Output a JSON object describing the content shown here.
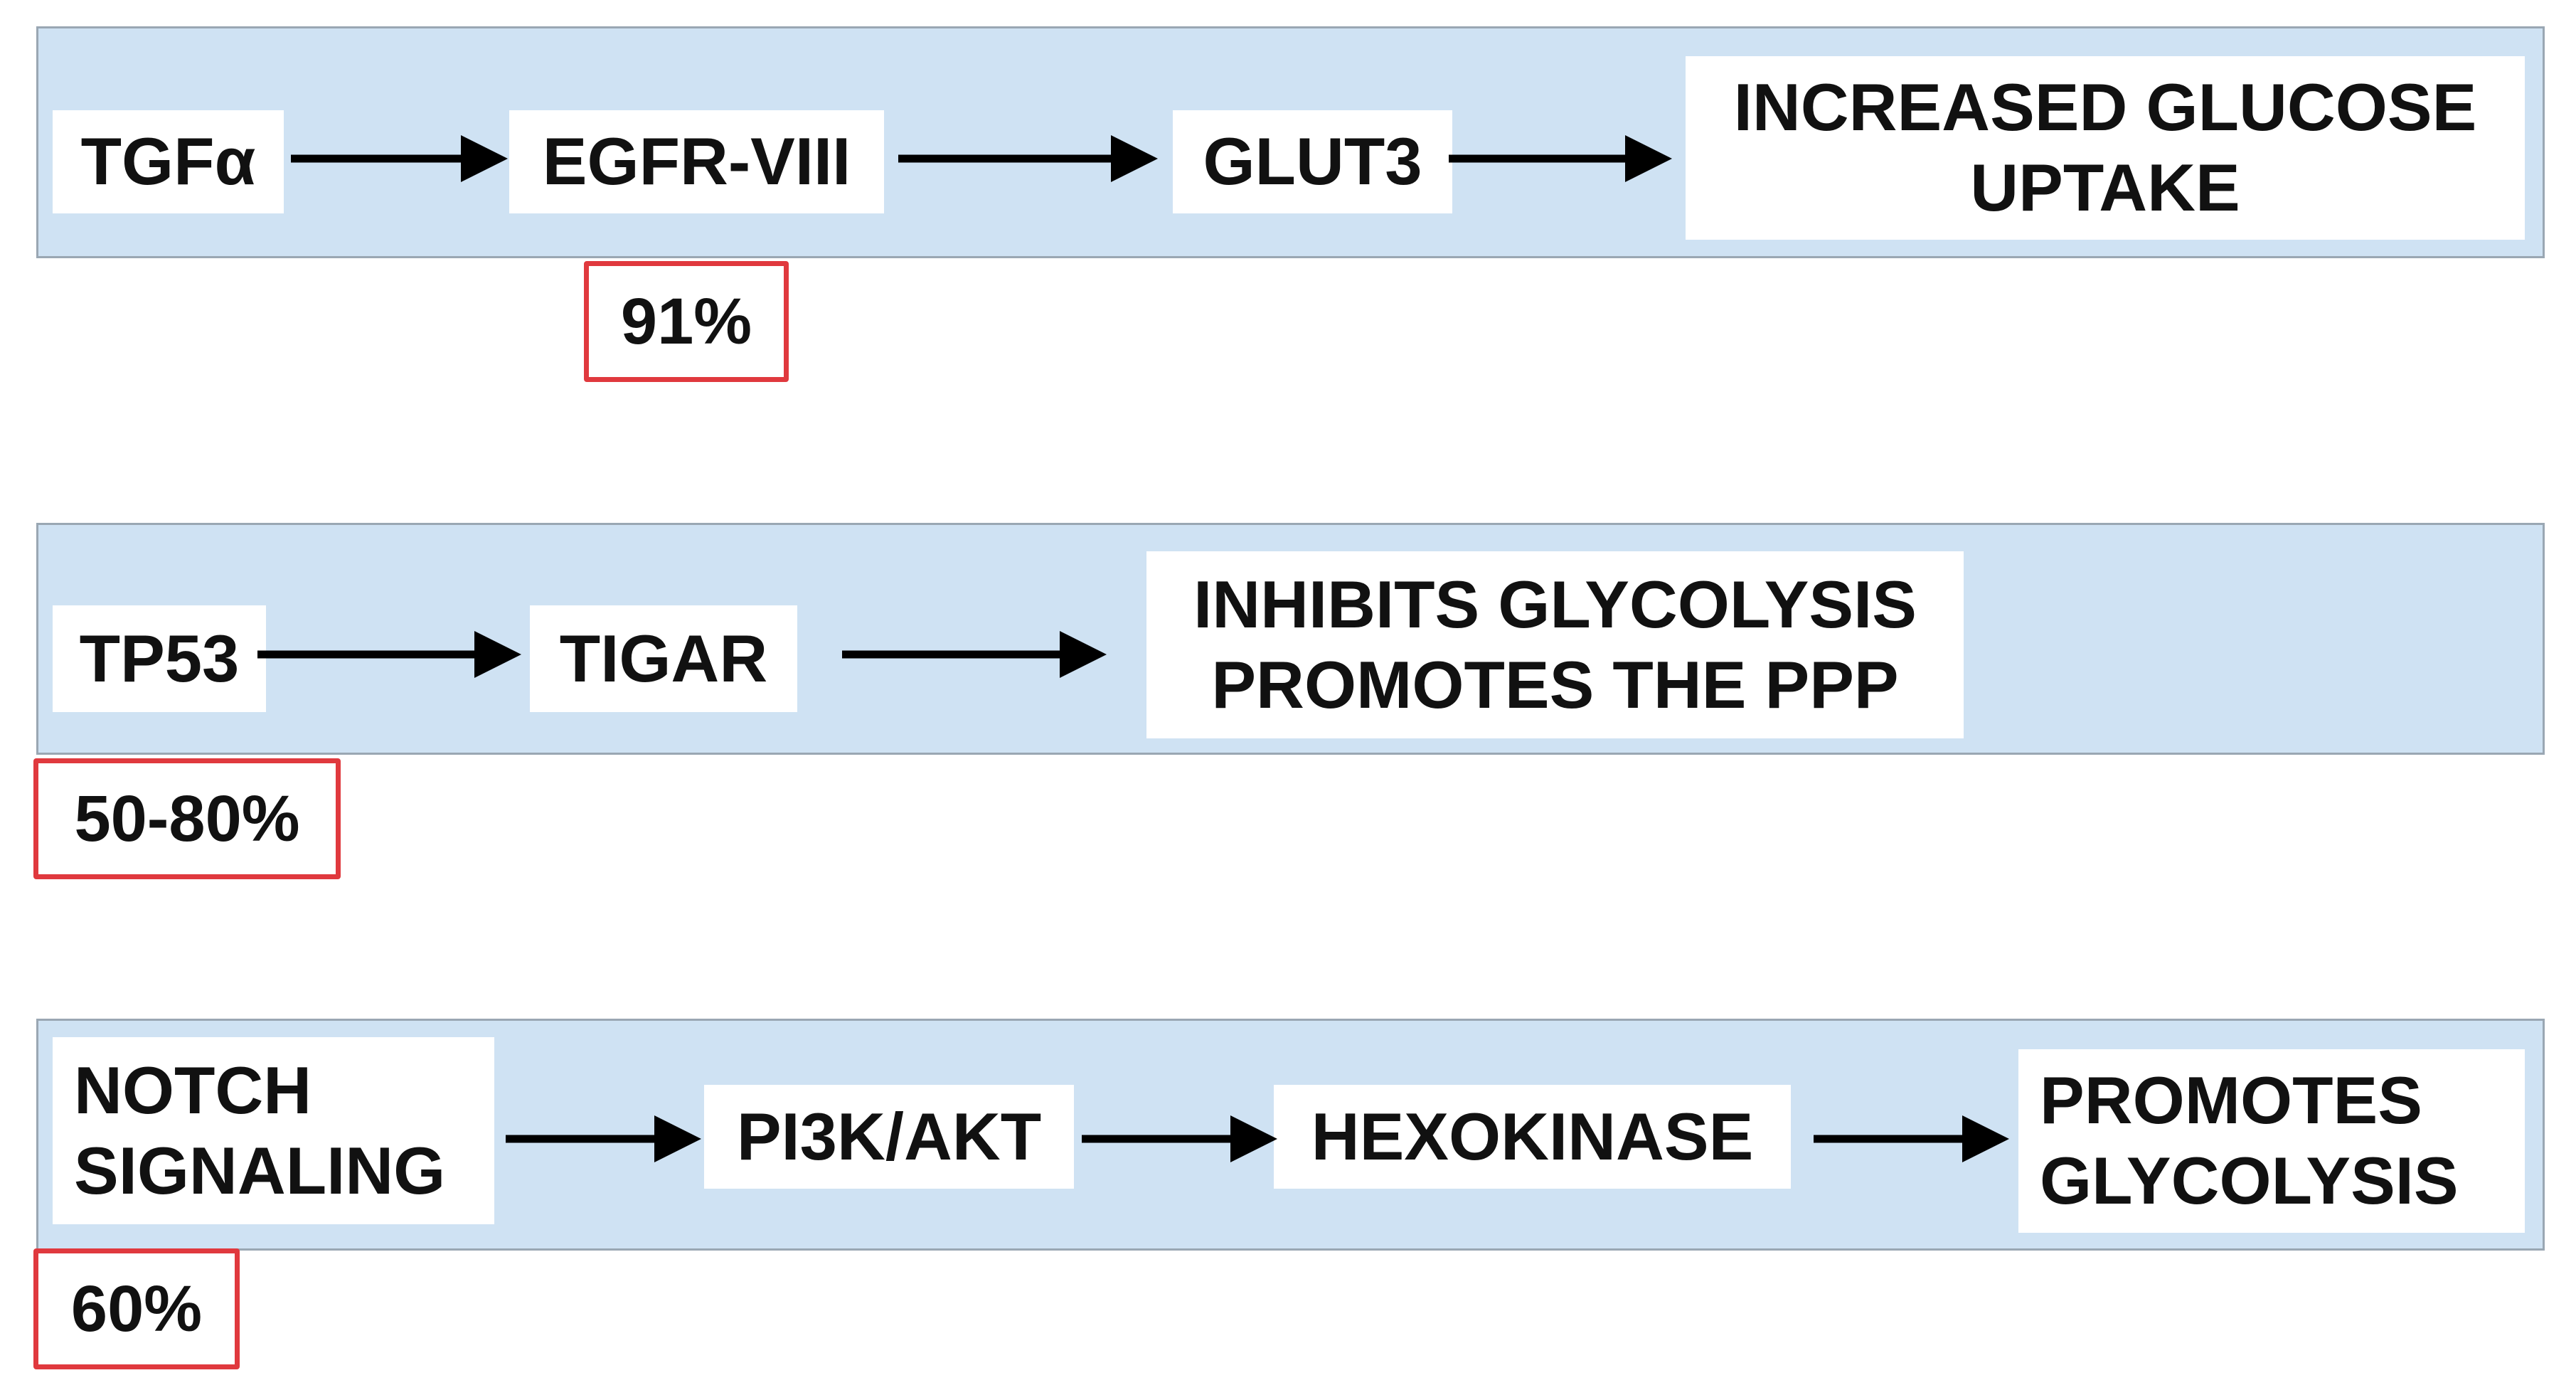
{
  "colors": {
    "band_fill": "#cfe2f3",
    "band_border": "#9aa7b3",
    "node_fill": "#ffffff",
    "badge_border": "#e0393e",
    "arrow": "#000000",
    "text": "#111111"
  },
  "pathways": [
    {
      "nodes": [
        "TGFα",
        "EGFR-VIII",
        "GLUT3",
        "INCREASED GLUCOSE\nUPTAKE"
      ],
      "badge": "91%"
    },
    {
      "nodes": [
        "TP53",
        "TIGAR",
        "INHIBITS GLYCOLYSIS\nPROMOTES THE PPP"
      ],
      "badge": "50-80%"
    },
    {
      "nodes": [
        "NOTCH\nSIGNALING",
        "PI3K/AKT",
        "HEXOKINASE",
        "PROMOTES\nGLYCOLYSIS"
      ],
      "badge": "60%"
    }
  ]
}
